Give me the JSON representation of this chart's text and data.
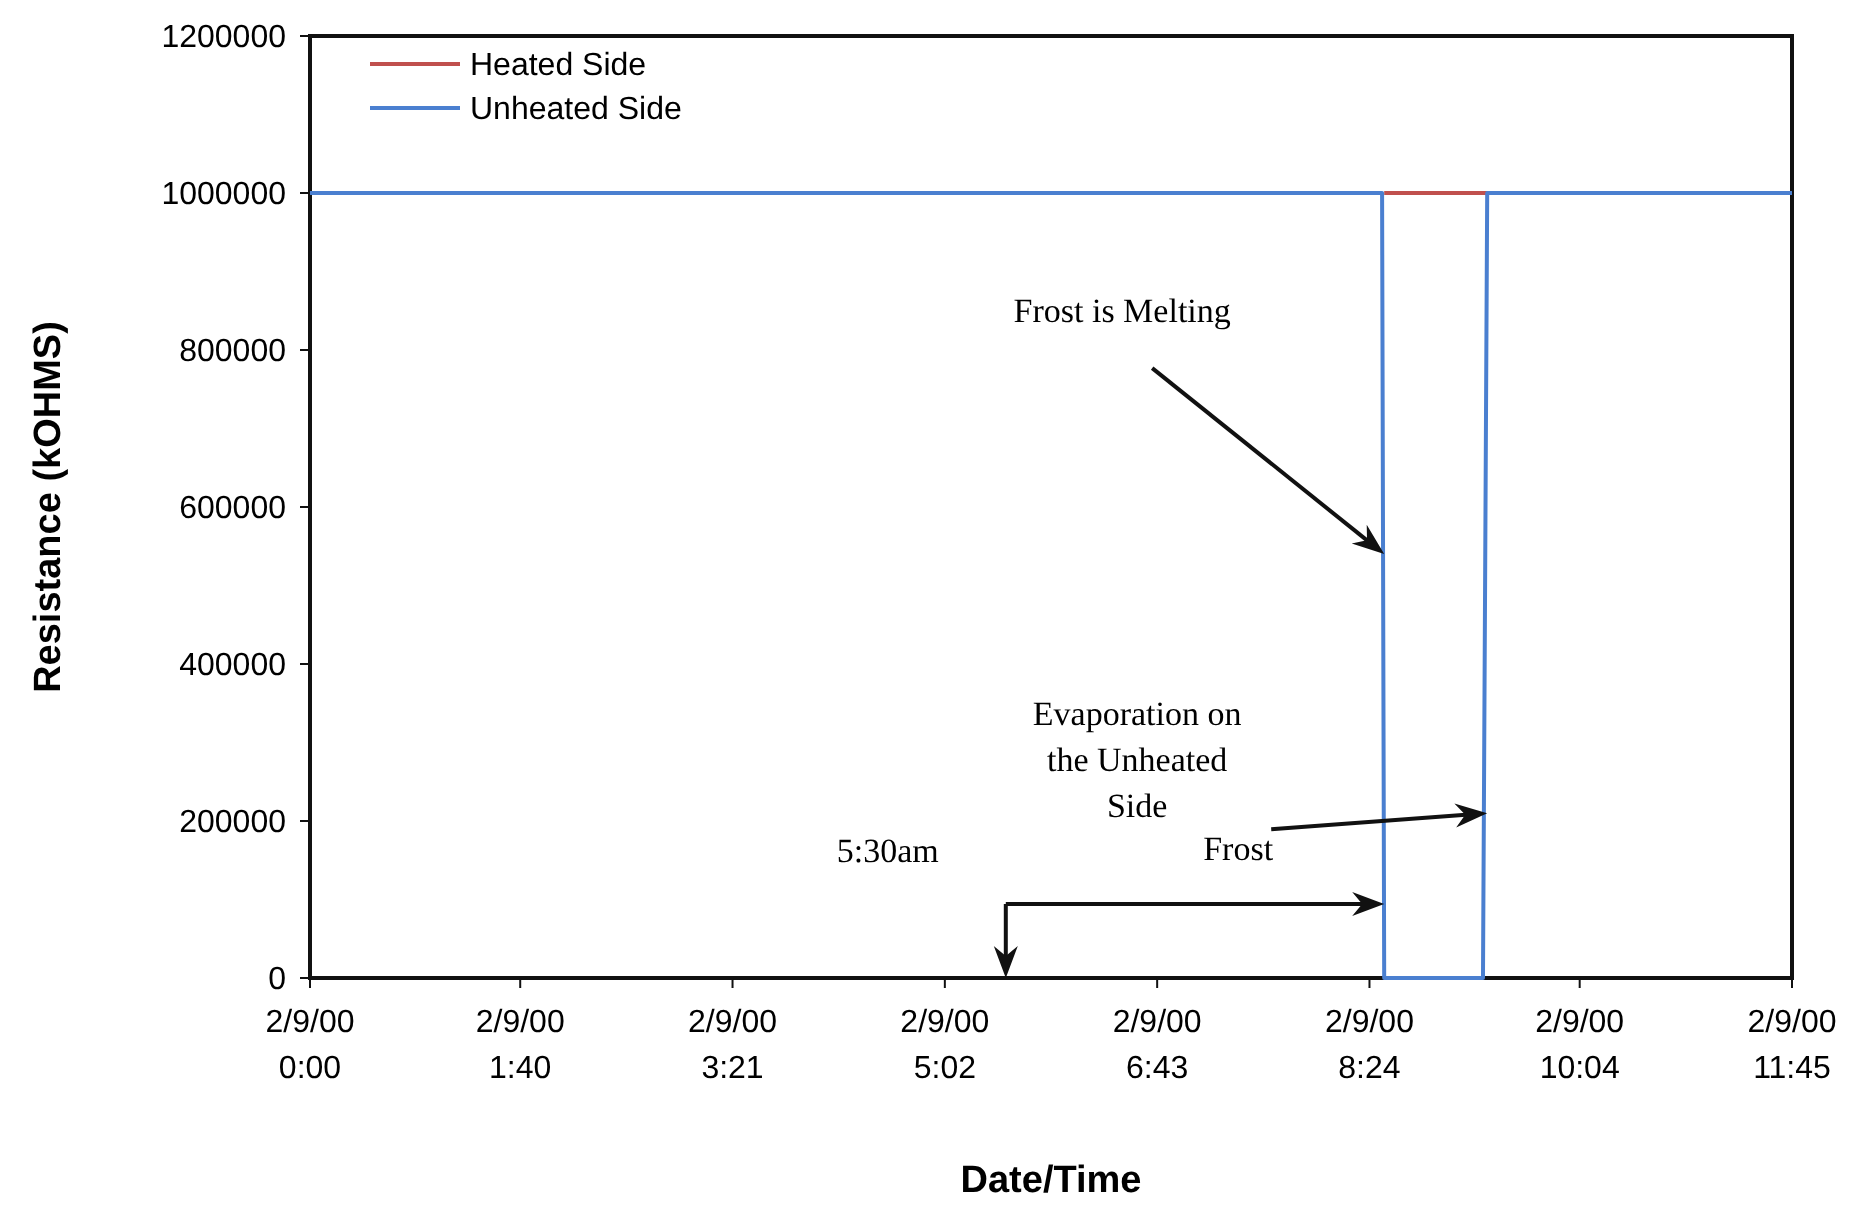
{
  "chart_data": {
    "type": "line",
    "xlabel": "Date/Time",
    "ylabel": "Resistance (kOHMS)",
    "xlim": [
      "2000-02-09T00:00",
      "2000-02-09T11:45"
    ],
    "ylim": [
      0,
      1200000
    ],
    "xticks": [
      {
        "value": "2000-02-09T00:00",
        "label": "2/9/00\n0:00"
      },
      {
        "value": "2000-02-09T01:40",
        "label": "2/9/00\n1:40"
      },
      {
        "value": "2000-02-09T03:21",
        "label": "2/9/00\n3:21"
      },
      {
        "value": "2000-02-09T05:02",
        "label": "2/9/00\n5:02"
      },
      {
        "value": "2000-02-09T06:43",
        "label": "2/9/00\n6:43"
      },
      {
        "value": "2000-02-09T08:24",
        "label": "2/9/00\n8:24"
      },
      {
        "value": "2000-02-09T10:04",
        "label": "2/9/00\n10:04"
      },
      {
        "value": "2000-02-09T11:45",
        "label": "2/9/00\n11:45"
      }
    ],
    "yticks": [
      0,
      200000,
      400000,
      600000,
      800000,
      1000000,
      1200000
    ],
    "grid": false,
    "legend": "top left",
    "marker": "none",
    "line_style": "solid",
    "series": [
      {
        "name": "Heated Side",
        "color": "#c0504d",
        "x": [
          "2000-02-09T08:31",
          "2000-02-09T09:20"
        ],
        "values": [
          1000000,
          1000000
        ]
      },
      {
        "name": "Unheated Side",
        "color": "#4a7fd0",
        "x": [
          "2000-02-09T00:00",
          "2000-02-09T08:30",
          "2000-02-09T08:31",
          "2000-02-09T09:18",
          "2000-02-09T09:20",
          "2000-02-09T09:22",
          "2000-02-09T11:45"
        ],
        "values": [
          1000000,
          1000000,
          0,
          0,
          1000000,
          1000000,
          1000000
        ]
      }
    ],
    "annotations": [
      "5:30am",
      "Frost",
      {
        "text": "Frost is Melting",
        "x": "2000-02-09T08:31",
        "y": 540000
      },
      {
        "text": "Evaporation on the Unheated Side",
        "x": "2000-02-09T09:20",
        "y": 210000
      }
    ]
  }
}
